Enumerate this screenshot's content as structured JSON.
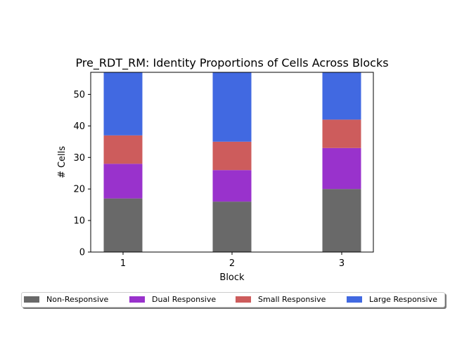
{
  "chart_data": {
    "type": "bar",
    "stacked": true,
    "title": "Pre_RDT_RM: Identity Proportions of Cells Across Blocks",
    "xlabel": "Block",
    "ylabel": "# Cells",
    "categories": [
      "1",
      "2",
      "3"
    ],
    "ylim": [
      0,
      57
    ],
    "yticks": [
      "0",
      "10",
      "20",
      "30",
      "40",
      "50"
    ],
    "series": [
      {
        "name": "Non-Responsive",
        "values": [
          17,
          16,
          20
        ],
        "color": "#696969"
      },
      {
        "name": "Dual Responsive",
        "values": [
          11,
          10,
          13
        ],
        "color": "#9932cc"
      },
      {
        "name": "Small Responsive",
        "values": [
          9,
          9,
          9
        ],
        "color": "#cd5c5c"
      },
      {
        "name": "Large Responsive",
        "values": [
          20,
          22,
          15
        ],
        "color": "#4169e1"
      }
    ],
    "legend_position": "bottom",
    "grid": false
  }
}
